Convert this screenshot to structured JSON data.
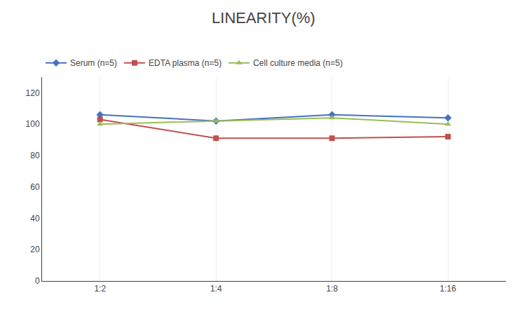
{
  "chart_data": {
    "type": "line",
    "title": "LINEARITY(%)",
    "categories": [
      "1:2",
      "1:4",
      "1:8",
      "1:16"
    ],
    "series": [
      {
        "name": "Serum (n=5)",
        "color": "#4472C4",
        "marker": "diamond",
        "values": [
          106,
          102,
          106,
          104
        ]
      },
      {
        "name": "EDTA plasma (n=5)",
        "color": "#C0504D",
        "marker": "square",
        "values": [
          103,
          91,
          91,
          92
        ]
      },
      {
        "name": "Cell culture media (n=5)",
        "color": "#9BBB59",
        "marker": "triangle-up",
        "values": [
          100,
          102,
          104,
          100
        ]
      }
    ],
    "ylim": [
      0,
      130
    ],
    "yticks": [
      0,
      20,
      40,
      60,
      80,
      100,
      120
    ],
    "grid": "x",
    "legend": "top"
  }
}
